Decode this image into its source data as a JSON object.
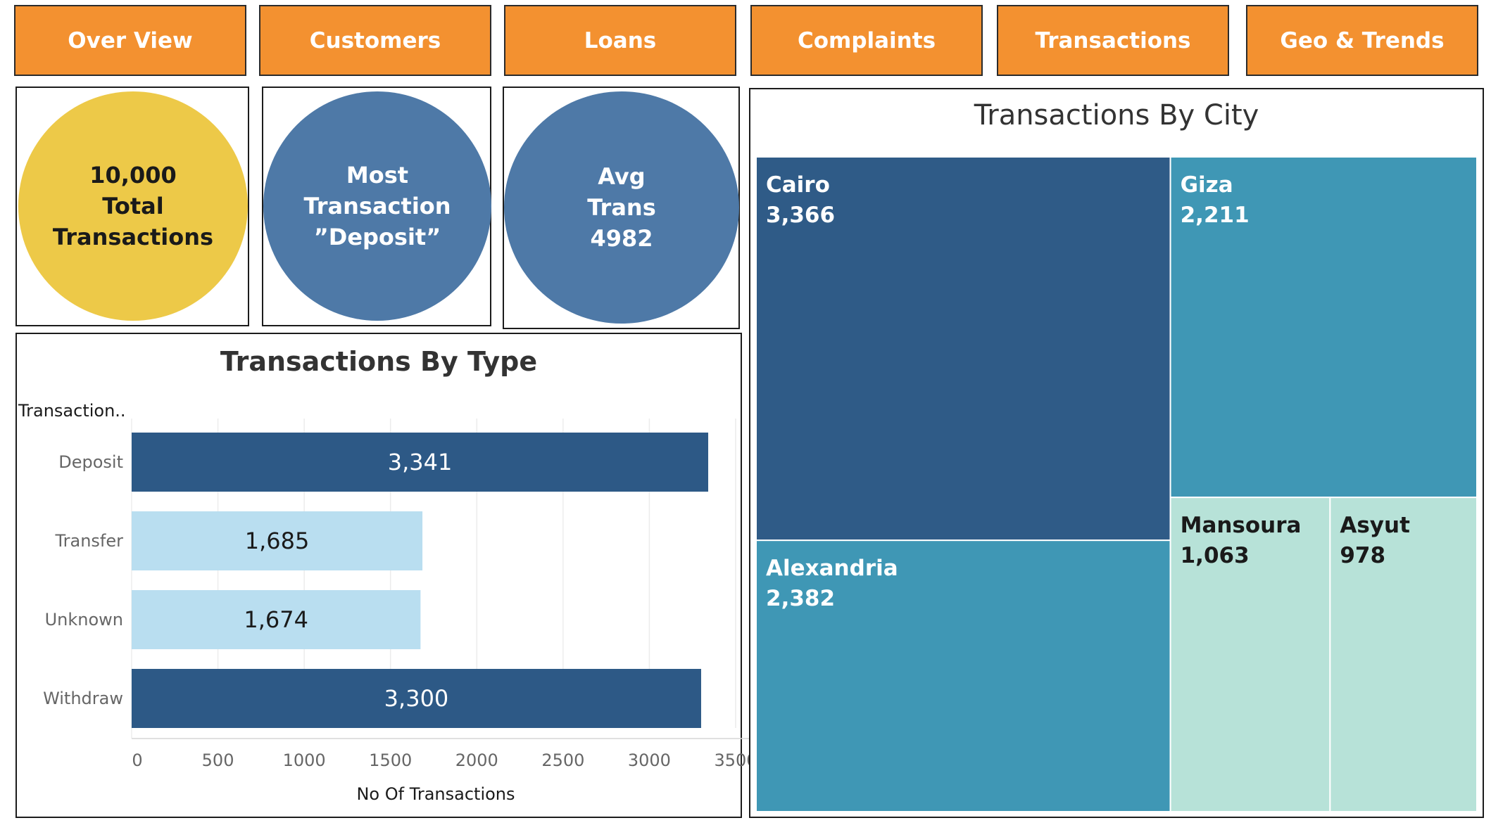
{
  "nav": {
    "items": [
      {
        "label": "Over View"
      },
      {
        "label": "Customers"
      },
      {
        "label": "Loans"
      },
      {
        "label": "Complaints"
      },
      {
        "label": "Transactions"
      },
      {
        "label": "Geo & Trends"
      }
    ]
  },
  "kpis": {
    "total": {
      "lines": [
        "10,000",
        "Total",
        "Transactions"
      ],
      "color": "#edc948"
    },
    "most": {
      "lines": [
        "Most",
        "Transaction",
        "”Deposit”"
      ],
      "color": "#4e79a7"
    },
    "avg": {
      "lines": [
        "Avg",
        "Trans",
        "4982"
      ],
      "color": "#4e79a7"
    }
  },
  "colors": {
    "nav_bg": "#f39130",
    "bar_dark": "#2d5986",
    "bar_light": "#b9def0",
    "cairo": "#2f5b87",
    "giza_alex": "#3f97b5",
    "mansoura_asyut": "#b7e2d8"
  },
  "chart_data": [
    {
      "type": "bar",
      "orientation": "horizontal",
      "title": "Transactions By Type",
      "y_field_label": "Transaction..",
      "categories": [
        "Deposit",
        "Transfer",
        "Unknown",
        "Withdraw"
      ],
      "values": [
        3341,
        1685,
        1674,
        3300
      ],
      "value_labels": [
        "3,341",
        "1,685",
        "1,674",
        "3,300"
      ],
      "xlabel": "No Of Transactions",
      "xlim": [
        0,
        3500
      ],
      "xticks": [
        0,
        500,
        1000,
        1500,
        2000,
        2500,
        3000,
        3500
      ],
      "grid": "vertical"
    },
    {
      "type": "treemap",
      "title": "Transactions By City",
      "items": [
        {
          "name": "Cairo",
          "value": 3366,
          "label": "3,366"
        },
        {
          "name": "Alexandria",
          "value": 2382,
          "label": "2,382"
        },
        {
          "name": "Giza",
          "value": 2211,
          "label": "2,211"
        },
        {
          "name": "Mansoura",
          "value": 1063,
          "label": "1,063"
        },
        {
          "name": "Asyut",
          "value": 978,
          "label": "978"
        }
      ]
    }
  ]
}
